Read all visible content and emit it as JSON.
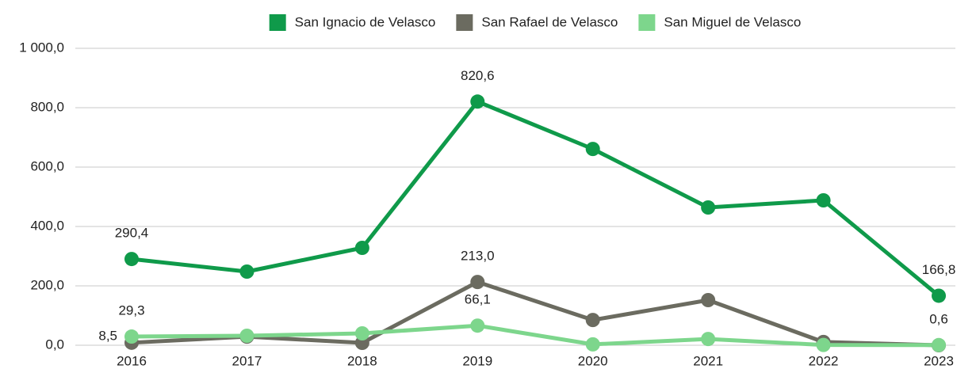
{
  "chart_data": {
    "type": "line",
    "categories": [
      "2016",
      "2017",
      "2018",
      "2019",
      "2020",
      "2021",
      "2022",
      "2023"
    ],
    "series": [
      {
        "name": "San Ignacio de Velasco",
        "color": "#0f9a4a",
        "values": [
          290.4,
          248,
          328,
          820.6,
          661,
          464,
          488,
          166.8
        ],
        "value_labels": [
          "290,4",
          null,
          null,
          "820,6",
          null,
          null,
          null,
          "166,8"
        ]
      },
      {
        "name": "San Rafael de Velasco",
        "color": "#6b6b60",
        "values": [
          8.5,
          29,
          8,
          213.0,
          85,
          152,
          11,
          0
        ],
        "value_labels": [
          "8,5",
          null,
          null,
          "213,0",
          null,
          null,
          null,
          null
        ]
      },
      {
        "name": "San Miguel de Velasco",
        "color": "#7dd68c",
        "values": [
          29.3,
          32,
          40,
          66.1,
          3,
          21,
          1,
          0.6
        ],
        "value_labels": [
          "29,3",
          null,
          null,
          "66,1",
          null,
          null,
          null,
          "0,6"
        ]
      }
    ],
    "ylim": [
      0,
      1000
    ],
    "yticks": [
      {
        "value": 0,
        "label": "0,0"
      },
      {
        "value": 200,
        "label": "200,0"
      },
      {
        "value": 400,
        "label": "400,0"
      },
      {
        "value": 600,
        "label": "600,0"
      },
      {
        "value": 800,
        "label": "800,0"
      },
      {
        "value": 1000,
        "label": "1 000,0"
      }
    ],
    "grid": true,
    "legend": "top"
  }
}
